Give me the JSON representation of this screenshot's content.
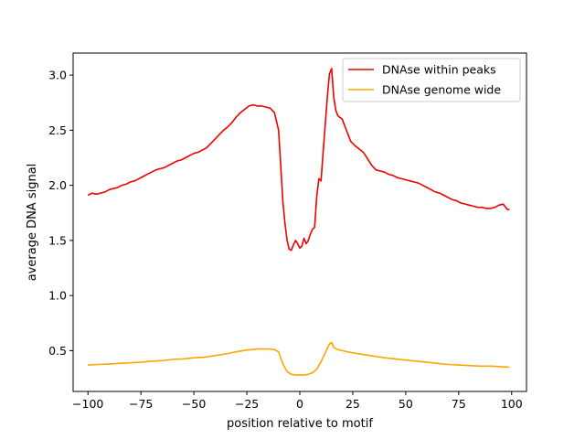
{
  "chart_data": {
    "type": "line",
    "xlabel": "position relative to motif",
    "ylabel": "average DNA signal",
    "xlim": [
      -107,
      107
    ],
    "ylim": [
      0.13,
      3.2
    ],
    "x_ticks": [
      -100,
      -75,
      -50,
      -25,
      0,
      25,
      50,
      75,
      100
    ],
    "x_tick_labels": [
      "−100",
      "−75",
      "−50",
      "−25",
      "0",
      "25",
      "50",
      "75",
      "100"
    ],
    "y_ticks": [
      0.5,
      1.0,
      1.5,
      2.0,
      2.5,
      3.0
    ],
    "y_tick_labels": [
      "0.5",
      "1.0",
      "1.5",
      "2.0",
      "2.5",
      "3.0"
    ],
    "grid": false,
    "legend_position": "top-right",
    "series": [
      {
        "name": "DNAse within peaks",
        "color": "#ee0000",
        "points": [
          [
            -100,
            1.91
          ],
          [
            -98,
            1.93
          ],
          [
            -96,
            1.92
          ],
          [
            -94,
            1.93
          ],
          [
            -92,
            1.94
          ],
          [
            -90,
            1.96
          ],
          [
            -88,
            1.97
          ],
          [
            -86,
            1.98
          ],
          [
            -84,
            2.0
          ],
          [
            -82,
            2.01
          ],
          [
            -80,
            2.03
          ],
          [
            -78,
            2.04
          ],
          [
            -76,
            2.06
          ],
          [
            -74,
            2.08
          ],
          [
            -72,
            2.1
          ],
          [
            -70,
            2.12
          ],
          [
            -68,
            2.14
          ],
          [
            -66,
            2.15
          ],
          [
            -64,
            2.16
          ],
          [
            -62,
            2.18
          ],
          [
            -60,
            2.2
          ],
          [
            -58,
            2.22
          ],
          [
            -56,
            2.23
          ],
          [
            -54,
            2.25
          ],
          [
            -52,
            2.27
          ],
          [
            -50,
            2.29
          ],
          [
            -48,
            2.3
          ],
          [
            -46,
            2.32
          ],
          [
            -44,
            2.34
          ],
          [
            -42,
            2.38
          ],
          [
            -40,
            2.42
          ],
          [
            -38,
            2.46
          ],
          [
            -36,
            2.5
          ],
          [
            -34,
            2.53
          ],
          [
            -32,
            2.57
          ],
          [
            -30,
            2.62
          ],
          [
            -28,
            2.66
          ],
          [
            -26,
            2.69
          ],
          [
            -24,
            2.72
          ],
          [
            -22,
            2.73
          ],
          [
            -20,
            2.72
          ],
          [
            -18,
            2.72
          ],
          [
            -16,
            2.71
          ],
          [
            -14,
            2.7
          ],
          [
            -12,
            2.66
          ],
          [
            -10,
            2.5
          ],
          [
            -8,
            1.85
          ],
          [
            -7,
            1.65
          ],
          [
            -6,
            1.5
          ],
          [
            -5,
            1.42
          ],
          [
            -4,
            1.41
          ],
          [
            -3,
            1.46
          ],
          [
            -2,
            1.5
          ],
          [
            -1,
            1.47
          ],
          [
            0,
            1.43
          ],
          [
            1,
            1.45
          ],
          [
            2,
            1.52
          ],
          [
            3,
            1.47
          ],
          [
            4,
            1.5
          ],
          [
            5,
            1.56
          ],
          [
            6,
            1.6
          ],
          [
            7,
            1.62
          ],
          [
            8,
            1.9
          ],
          [
            9,
            2.06
          ],
          [
            10,
            2.04
          ],
          [
            11,
            2.3
          ],
          [
            12,
            2.55
          ],
          [
            13,
            2.8
          ],
          [
            14,
            3.01
          ],
          [
            15,
            3.06
          ],
          [
            16,
            2.8
          ],
          [
            17,
            2.68
          ],
          [
            18,
            2.63
          ],
          [
            20,
            2.6
          ],
          [
            22,
            2.5
          ],
          [
            24,
            2.4
          ],
          [
            26,
            2.36
          ],
          [
            28,
            2.33
          ],
          [
            30,
            2.3
          ],
          [
            32,
            2.24
          ],
          [
            34,
            2.18
          ],
          [
            36,
            2.14
          ],
          [
            38,
            2.13
          ],
          [
            40,
            2.12
          ],
          [
            42,
            2.1
          ],
          [
            44,
            2.09
          ],
          [
            46,
            2.07
          ],
          [
            48,
            2.06
          ],
          [
            50,
            2.05
          ],
          [
            52,
            2.04
          ],
          [
            54,
            2.03
          ],
          [
            56,
            2.02
          ],
          [
            58,
            2.0
          ],
          [
            60,
            1.98
          ],
          [
            62,
            1.96
          ],
          [
            64,
            1.94
          ],
          [
            66,
            1.93
          ],
          [
            68,
            1.91
          ],
          [
            70,
            1.89
          ],
          [
            72,
            1.87
          ],
          [
            74,
            1.86
          ],
          [
            76,
            1.84
          ],
          [
            78,
            1.83
          ],
          [
            80,
            1.82
          ],
          [
            82,
            1.81
          ],
          [
            84,
            1.8
          ],
          [
            86,
            1.8
          ],
          [
            88,
            1.79
          ],
          [
            90,
            1.79
          ],
          [
            92,
            1.8
          ],
          [
            94,
            1.82
          ],
          [
            96,
            1.83
          ],
          [
            98,
            1.78
          ],
          [
            99,
            1.78
          ]
        ]
      },
      {
        "name": "DNAse genome wide",
        "color": "#ffa500",
        "points": [
          [
            -100,
            0.37
          ],
          [
            -95,
            0.375
          ],
          [
            -90,
            0.38
          ],
          [
            -85,
            0.385
          ],
          [
            -80,
            0.39
          ],
          [
            -75,
            0.395
          ],
          [
            -70,
            0.405
          ],
          [
            -65,
            0.41
          ],
          [
            -60,
            0.42
          ],
          [
            -55,
            0.425
          ],
          [
            -50,
            0.435
          ],
          [
            -45,
            0.44
          ],
          [
            -40,
            0.455
          ],
          [
            -35,
            0.47
          ],
          [
            -30,
            0.49
          ],
          [
            -25,
            0.505
          ],
          [
            -20,
            0.515
          ],
          [
            -15,
            0.515
          ],
          [
            -12,
            0.51
          ],
          [
            -10,
            0.49
          ],
          [
            -8,
            0.38
          ],
          [
            -6,
            0.31
          ],
          [
            -4,
            0.285
          ],
          [
            -2,
            0.28
          ],
          [
            0,
            0.28
          ],
          [
            2,
            0.28
          ],
          [
            4,
            0.285
          ],
          [
            6,
            0.3
          ],
          [
            8,
            0.33
          ],
          [
            10,
            0.4
          ],
          [
            12,
            0.48
          ],
          [
            14,
            0.56
          ],
          [
            15,
            0.575
          ],
          [
            16,
            0.53
          ],
          [
            18,
            0.51
          ],
          [
            20,
            0.5
          ],
          [
            25,
            0.48
          ],
          [
            30,
            0.465
          ],
          [
            35,
            0.45
          ],
          [
            40,
            0.435
          ],
          [
            45,
            0.425
          ],
          [
            50,
            0.415
          ],
          [
            55,
            0.405
          ],
          [
            60,
            0.395
          ],
          [
            65,
            0.385
          ],
          [
            70,
            0.375
          ],
          [
            75,
            0.37
          ],
          [
            80,
            0.365
          ],
          [
            85,
            0.36
          ],
          [
            90,
            0.36
          ],
          [
            95,
            0.355
          ],
          [
            99,
            0.35
          ]
        ]
      }
    ]
  }
}
